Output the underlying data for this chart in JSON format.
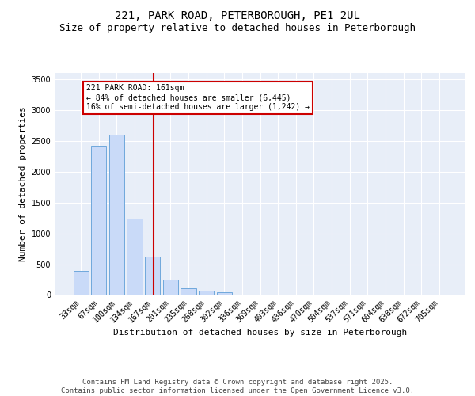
{
  "title_line1": "221, PARK ROAD, PETERBOROUGH, PE1 2UL",
  "title_line2": "Size of property relative to detached houses in Peterborough",
  "xlabel": "Distribution of detached houses by size in Peterborough",
  "ylabel": "Number of detached properties",
  "categories": [
    "33sqm",
    "67sqm",
    "100sqm",
    "134sqm",
    "167sqm",
    "201sqm",
    "235sqm",
    "268sqm",
    "302sqm",
    "336sqm",
    "369sqm",
    "403sqm",
    "436sqm",
    "470sqm",
    "504sqm",
    "537sqm",
    "571sqm",
    "604sqm",
    "638sqm",
    "672sqm",
    "705sqm"
  ],
  "values": [
    390,
    2420,
    2600,
    1240,
    630,
    250,
    115,
    75,
    50,
    0,
    0,
    0,
    0,
    0,
    0,
    0,
    0,
    0,
    0,
    0,
    0
  ],
  "bar_color": "#c9daf8",
  "bar_edge_color": "#6fa8dc",
  "vline_color": "#cc0000",
  "vline_x_index": 4.07,
  "annotation_line1": "221 PARK ROAD: 161sqm",
  "annotation_line2": "← 84% of detached houses are smaller (6,445)",
  "annotation_line3": "16% of semi-detached houses are larger (1,242) →",
  "annotation_box_edgecolor": "#cc0000",
  "ylim_max": 3600,
  "yticks": [
    0,
    500,
    1000,
    1500,
    2000,
    2500,
    3000,
    3500
  ],
  "plot_bg_color": "#e8eef8",
  "grid_color": "#ffffff",
  "footer_text": "Contains HM Land Registry data © Crown copyright and database right 2025.\nContains public sector information licensed under the Open Government Licence v3.0.",
  "title_fontsize": 10,
  "subtitle_fontsize": 9,
  "axis_label_fontsize": 8,
  "tick_fontsize": 7,
  "annotation_fontsize": 7,
  "footer_fontsize": 6.5
}
